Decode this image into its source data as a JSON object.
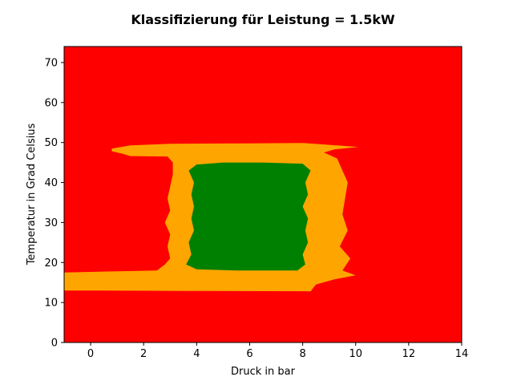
{
  "chart_data": {
    "type": "heatmap",
    "title": "Klassifizierung für Leistung = 1.5kW",
    "xlabel": "Druck in bar",
    "ylabel": "Temperatur in Grad Celsius",
    "xlim": [
      -1,
      14
    ],
    "ylim": [
      0,
      74
    ],
    "xticks": [
      0,
      2,
      4,
      6,
      8,
      10,
      12,
      14
    ],
    "yticks": [
      0,
      10,
      20,
      30,
      40,
      50,
      60,
      70
    ],
    "classes": [
      {
        "name": "red",
        "color": "#ff0000"
      },
      {
        "name": "orange",
        "color": "#ffa500"
      },
      {
        "name": "green",
        "color": "#008000"
      }
    ],
    "regions": [
      {
        "class": "orange",
        "polygon": [
          [
            0.8,
            48.5
          ],
          [
            1.5,
            49.3
          ],
          [
            3.0,
            49.7
          ],
          [
            6.0,
            49.8
          ],
          [
            8.0,
            49.9
          ],
          [
            9.5,
            49.2
          ],
          [
            10.1,
            48.9
          ],
          [
            9.2,
            48.3
          ],
          [
            8.8,
            47.5
          ],
          [
            9.3,
            46.0
          ],
          [
            9.5,
            43.0
          ],
          [
            9.7,
            40.0
          ],
          [
            9.6,
            36.0
          ],
          [
            9.5,
            32.0
          ],
          [
            9.7,
            28.0
          ],
          [
            9.4,
            24.0
          ],
          [
            9.8,
            21.0
          ],
          [
            9.5,
            18.0
          ],
          [
            10.0,
            16.8
          ],
          [
            9.2,
            15.8
          ],
          [
            8.5,
            14.5
          ],
          [
            8.3,
            12.8
          ],
          [
            3.5,
            12.9
          ],
          [
            0.0,
            13.0
          ],
          [
            -1.0,
            13.0
          ],
          [
            -1.0,
            17.5
          ],
          [
            1.0,
            17.8
          ],
          [
            2.5,
            18.0
          ],
          [
            2.8,
            19.5
          ],
          [
            3.0,
            21.0
          ],
          [
            2.9,
            24.0
          ],
          [
            3.0,
            27.0
          ],
          [
            2.8,
            30.0
          ],
          [
            3.0,
            33.0
          ],
          [
            2.9,
            36.0
          ],
          [
            3.0,
            39.0
          ],
          [
            3.1,
            42.0
          ],
          [
            3.1,
            45.0
          ],
          [
            2.9,
            46.5
          ],
          [
            1.5,
            46.6
          ],
          [
            1.2,
            47.2
          ],
          [
            0.8,
            47.8
          ]
        ]
      },
      {
        "class": "green",
        "polygon": [
          [
            4.0,
            44.5
          ],
          [
            5.0,
            45.0
          ],
          [
            6.5,
            45.0
          ],
          [
            8.0,
            44.7
          ],
          [
            8.3,
            43.0
          ],
          [
            8.1,
            40.0
          ],
          [
            8.2,
            37.0
          ],
          [
            8.0,
            34.0
          ],
          [
            8.2,
            31.0
          ],
          [
            8.1,
            28.0
          ],
          [
            8.2,
            25.0
          ],
          [
            8.0,
            22.0
          ],
          [
            8.1,
            19.5
          ],
          [
            7.8,
            18.0
          ],
          [
            5.5,
            18.0
          ],
          [
            4.0,
            18.3
          ],
          [
            3.6,
            19.5
          ],
          [
            3.8,
            22.0
          ],
          [
            3.7,
            25.0
          ],
          [
            3.9,
            28.0
          ],
          [
            3.8,
            31.0
          ],
          [
            3.9,
            34.0
          ],
          [
            3.8,
            37.0
          ],
          [
            3.9,
            40.0
          ],
          [
            3.7,
            43.0
          ]
        ]
      }
    ]
  }
}
